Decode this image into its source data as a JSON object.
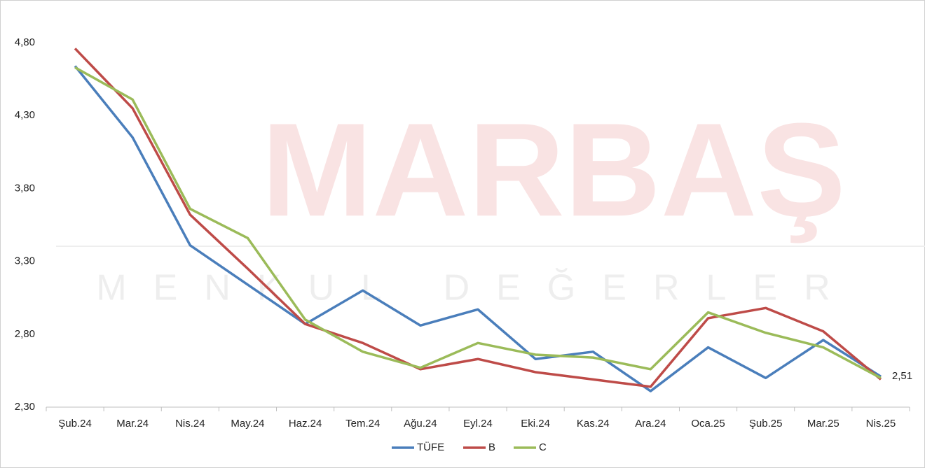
{
  "chart_data": {
    "type": "line",
    "categories": [
      "Şub.24",
      "Mar.24",
      "Nis.24",
      "May.24",
      "Haz.24",
      "Tem.24",
      "Ağu.24",
      "Eyl.24",
      "Eki.24",
      "Kas.24",
      "Ara.24",
      "Oca.25",
      "Şub.25",
      "Mar.25",
      "Nis.25"
    ],
    "series": [
      {
        "name": "TÜFE",
        "color": "#4a7ebb",
        "values": [
          4.64,
          4.15,
          3.41,
          3.14,
          2.87,
          3.1,
          2.86,
          2.97,
          2.63,
          2.68,
          2.41,
          2.71,
          2.5,
          2.76,
          2.51
        ],
        "value_labels": [
          null,
          null,
          null,
          null,
          null,
          null,
          null,
          null,
          null,
          null,
          null,
          null,
          null,
          null,
          "2,51"
        ]
      },
      {
        "name": "B",
        "color": "#be4b48",
        "values": [
          4.76,
          4.35,
          3.62,
          3.25,
          2.87,
          2.74,
          2.56,
          2.63,
          2.54,
          2.49,
          2.44,
          2.91,
          2.98,
          2.82,
          2.49
        ]
      },
      {
        "name": "C",
        "color": "#9bbb59",
        "values": [
          4.63,
          4.41,
          3.66,
          3.46,
          2.9,
          2.68,
          2.57,
          2.74,
          2.66,
          2.64,
          2.56,
          2.95,
          2.81,
          2.71,
          2.5
        ]
      }
    ],
    "ylim": [
      2.3,
      4.8
    ],
    "yticks": [
      {
        "value": 2.3,
        "label": "2,30"
      },
      {
        "value": 2.8,
        "label": "2,80"
      },
      {
        "value": 3.3,
        "label": "3,30"
      },
      {
        "value": 3.8,
        "label": "3,80"
      },
      {
        "value": 4.3,
        "label": "4,30"
      },
      {
        "value": 4.8,
        "label": "4,80"
      }
    ],
    "grid": false,
    "legend": "bottom"
  },
  "watermark": {
    "title": "MARBAŞ",
    "subtitle": "MENKUL DEĞERLER"
  }
}
